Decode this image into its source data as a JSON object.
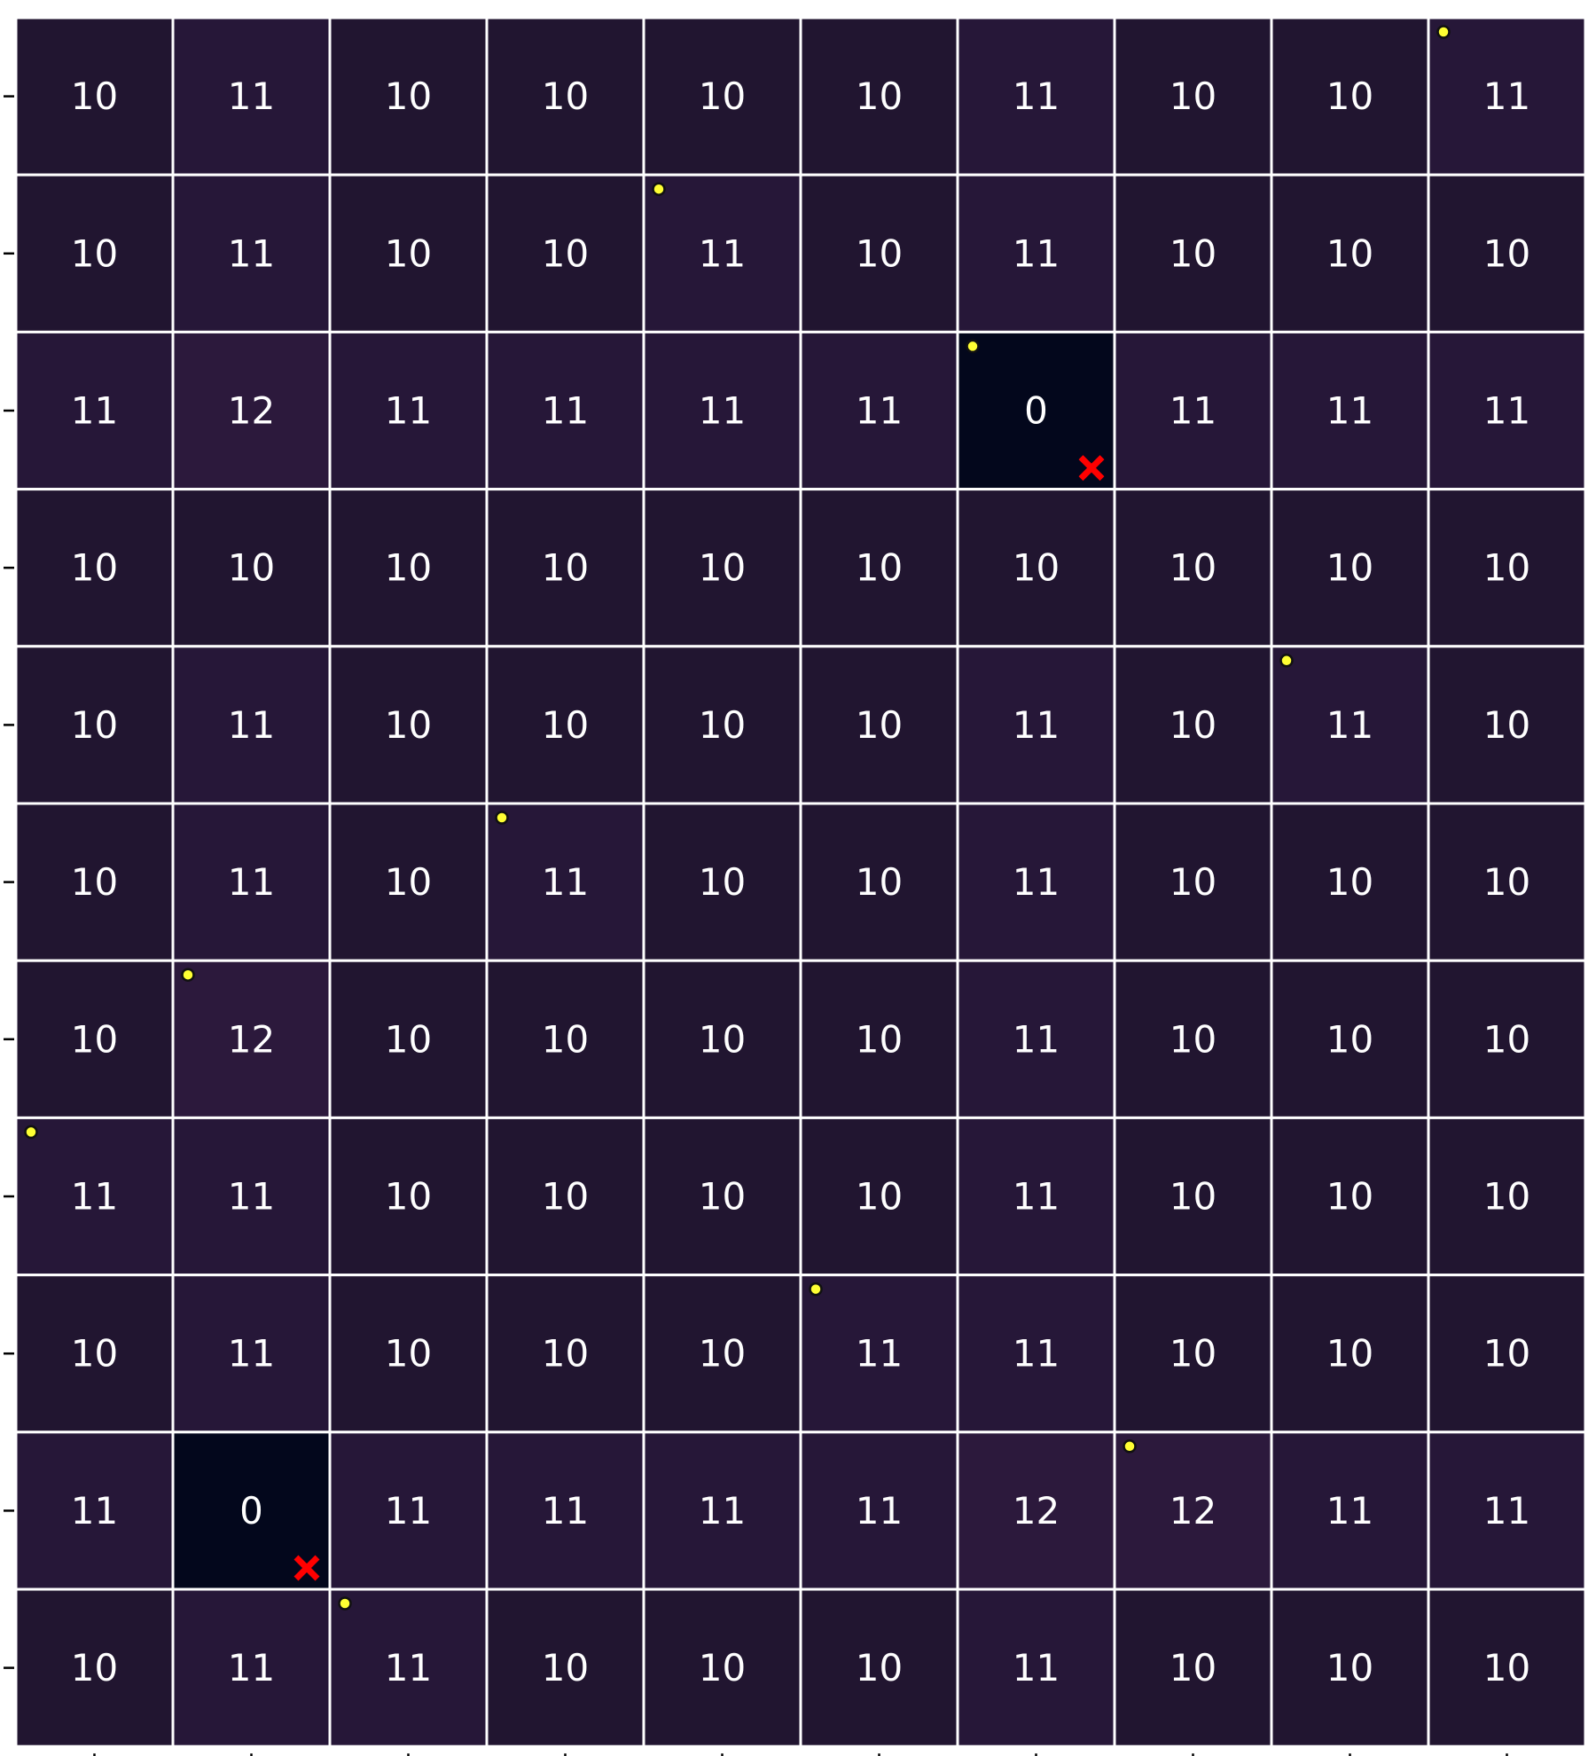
{
  "chart_data": {
    "type": "heatmap",
    "title": "",
    "xlabel": "",
    "ylabel": "",
    "grid": true,
    "legend": "none",
    "x_tick_labels": [],
    "y_tick_labels": [],
    "rows": 11,
    "cols": 10,
    "values": [
      [
        10,
        11,
        10,
        10,
        10,
        10,
        11,
        10,
        10,
        11
      ],
      [
        10,
        11,
        10,
        10,
        11,
        10,
        11,
        10,
        10,
        10
      ],
      [
        11,
        12,
        11,
        11,
        11,
        11,
        0,
        11,
        11,
        11
      ],
      [
        10,
        10,
        10,
        10,
        10,
        10,
        10,
        10,
        10,
        10
      ],
      [
        10,
        11,
        10,
        10,
        10,
        10,
        11,
        10,
        11,
        10
      ],
      [
        10,
        11,
        10,
        11,
        10,
        10,
        11,
        10,
        10,
        10
      ],
      [
        10,
        12,
        10,
        10,
        10,
        10,
        11,
        10,
        10,
        10
      ],
      [
        11,
        11,
        10,
        10,
        10,
        10,
        11,
        10,
        10,
        10
      ],
      [
        10,
        11,
        10,
        10,
        10,
        11,
        11,
        10,
        10,
        10
      ],
      [
        11,
        0,
        11,
        11,
        11,
        11,
        12,
        12,
        11,
        11
      ],
      [
        10,
        11,
        11,
        10,
        10,
        10,
        11,
        10,
        10,
        10
      ]
    ],
    "markers": [
      {
        "row": 0,
        "col": 9
      },
      {
        "row": 1,
        "col": 4
      },
      {
        "row": 2,
        "col": 6
      },
      {
        "row": 4,
        "col": 8
      },
      {
        "row": 5,
        "col": 3
      },
      {
        "row": 6,
        "col": 1
      },
      {
        "row": 7,
        "col": 0
      },
      {
        "row": 8,
        "col": 5
      },
      {
        "row": 9,
        "col": 7
      },
      {
        "row": 10,
        "col": 2
      }
    ],
    "crosses": [
      {
        "row": 2,
        "col": 6
      },
      {
        "row": 9,
        "col": 1
      }
    ],
    "colors": {
      "value_0": "#03071c",
      "value_10": "#211530",
      "value_11": "#261738",
      "value_12": "#2c193c",
      "cell_text": "#ffffff",
      "grid_line": "#ffffff",
      "marker_fill": "#ffff33",
      "marker_edge": "#111111",
      "cross": "#ff0000"
    }
  }
}
